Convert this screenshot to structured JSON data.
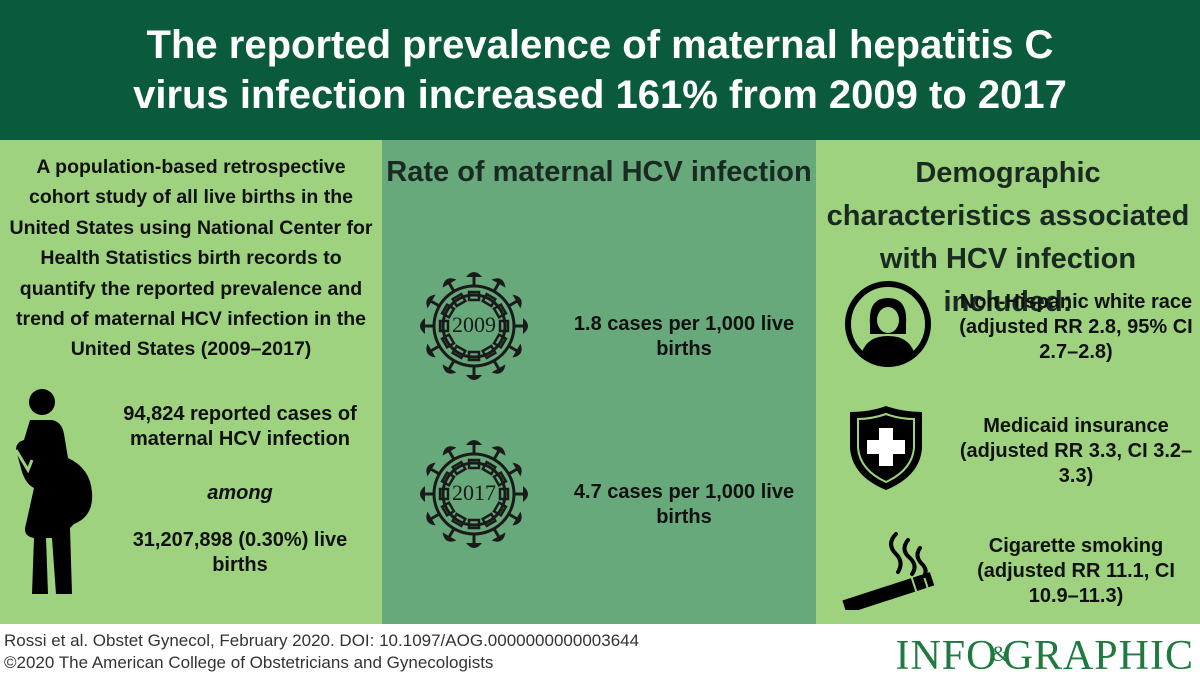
{
  "header": {
    "title": "The reported prevalence of maternal hepatitis C virus infection increased 161% from 2009 to 2017"
  },
  "left_panel": {
    "study_description": "A population-based retrospective cohort study of all live births in the United States using National Center for Health Statistics birth records to quantify the reported prevalence and trend of maternal HCV infection in the United States (2009–2017)",
    "cases": "94,824 reported cases of maternal HCV infection",
    "among": "among",
    "births": "31,207,898 (0.30%) live births",
    "icon": "pregnant-woman-icon"
  },
  "middle_panel": {
    "title": "Rate of maternal HCV infection",
    "rates": [
      {
        "year": "2009",
        "text": "1.8 cases per 1,000 live births"
      },
      {
        "year": "2017",
        "text": "4.7 cases per 1,000 live births"
      }
    ],
    "icon": "virus-icon"
  },
  "right_panel": {
    "title": "Demographic characteristics associated with HCV infection included:",
    "items": [
      {
        "icon": "woman-avatar-icon",
        "text": "Non-Hispanic white race (adjusted RR 2.8, 95% CI 2.7–2.8)"
      },
      {
        "icon": "medical-shield-icon",
        "text": "Medicaid insurance (adjusted RR 3.3, CI 3.2–3.3)"
      },
      {
        "icon": "cigarette-icon",
        "text": "Cigarette smoking (adjusted RR 11.1, CI 10.9–11.3)"
      }
    ]
  },
  "footer": {
    "citation": "Rossi et al. Obstet Gynecol, February 2020. DOI: 10.1097/AOG.0000000000003644",
    "copyright": "©2020 The American College of Obstetricians and Gynecologists",
    "logo": {
      "part1": "INFO",
      "amp": "&",
      "part2": "GRAPHIC"
    }
  },
  "colors": {
    "header_bg": "#0a5a3c",
    "side_panel_bg": "#9ed27e",
    "middle_panel_bg": "#67a97b",
    "logo_green": "#1e7a3e"
  }
}
